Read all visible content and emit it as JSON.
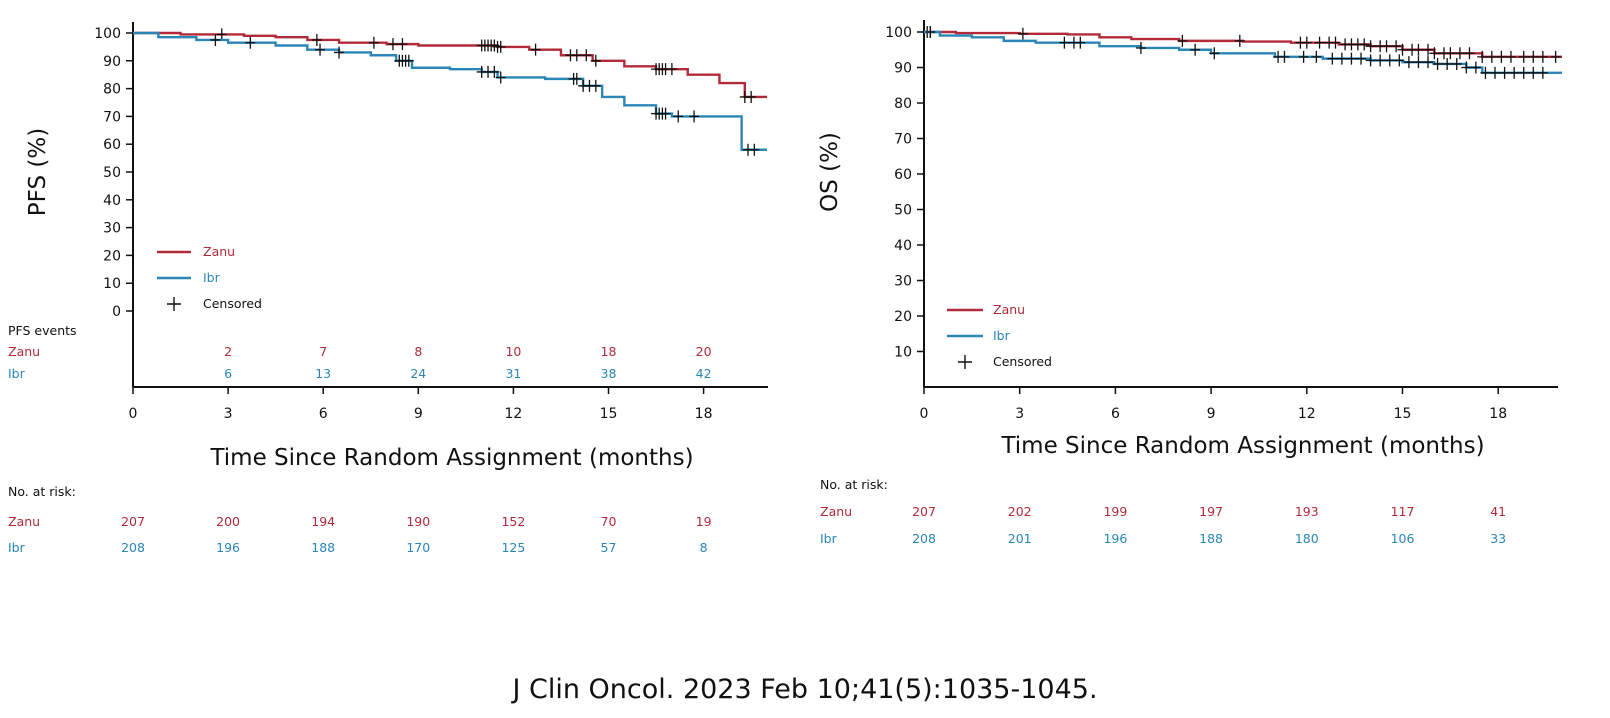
{
  "colors": {
    "zanu": "#b22a3a",
    "ibr": "#2a86b6",
    "axis": "#111111"
  },
  "citation": "J Clin Oncol. 2023 Feb 10;41(5):1035-1045.",
  "chart_data": [
    {
      "type": "line",
      "step": true,
      "ylabel": "PFS (%)",
      "xlabel": "Time Since Random Assignment (months)",
      "xlim": [
        0,
        20
      ],
      "ylim": [
        0,
        100
      ],
      "xticks": [
        0,
        3,
        6,
        9,
        12,
        15,
        18
      ],
      "yticks": [
        0,
        10,
        20,
        30,
        40,
        50,
        60,
        70,
        80,
        90,
        100
      ],
      "grid": false,
      "legend": {
        "placement": "lower-left",
        "censored_label": "Censored"
      },
      "series": [
        {
          "name": "Zanu",
          "color": "#b22a3a",
          "x": [
            0,
            1.5,
            3.5,
            4.5,
            5.5,
            6.5,
            8.0,
            9.0,
            10.0,
            11.5,
            12.5,
            13.5,
            14.5,
            15.5,
            16.5,
            17.5,
            18.5,
            19.3,
            20.0
          ],
          "y": [
            100,
            99.5,
            99,
            98.5,
            97.5,
            96.5,
            96,
            95.5,
            95.5,
            95,
            94,
            92,
            90,
            88,
            87,
            85,
            82,
            77,
            77
          ],
          "censored_x": [
            2.8,
            5.8,
            7.6,
            8.2,
            8.5,
            11.0,
            11.1,
            11.2,
            11.3,
            11.4,
            11.5,
            11.6,
            12.7,
            13.8,
            14.0,
            14.3,
            14.6,
            16.5,
            16.6,
            16.7,
            16.8,
            17.0,
            19.3,
            19.5
          ]
        },
        {
          "name": "Ibr",
          "color": "#2a86b6",
          "x": [
            0,
            0.8,
            2.0,
            3.0,
            4.5,
            5.5,
            6.5,
            7.5,
            8.3,
            8.8,
            10.0,
            11.0,
            11.5,
            13.0,
            14.2,
            14.8,
            15.5,
            16.5,
            17.0,
            19.2,
            20.0
          ],
          "y": [
            100,
            98.5,
            97.5,
            96.5,
            95.5,
            94,
            93,
            92,
            90,
            87.5,
            87,
            86,
            84,
            83.5,
            81,
            77,
            74,
            71,
            70,
            58,
            58
          ],
          "censored_x": [
            2.6,
            3.7,
            5.9,
            6.5,
            8.4,
            8.5,
            8.6,
            8.7,
            11.0,
            11.2,
            11.4,
            11.6,
            13.9,
            14.0,
            14.2,
            14.4,
            14.6,
            16.5,
            16.6,
            16.7,
            16.8,
            17.2,
            17.7,
            19.4,
            19.6
          ]
        }
      ],
      "events": {
        "label": "PFS events",
        "x": [
          3,
          6,
          9,
          12,
          15,
          18
        ],
        "zanu": [
          "2",
          "7",
          "8",
          "10",
          "18",
          "20"
        ],
        "ibr": [
          "6",
          "13",
          "24",
          "31",
          "38",
          "42"
        ]
      },
      "at_risk": {
        "label": "No. at risk:",
        "x": [
          0,
          3,
          6,
          9,
          12,
          15,
          18
        ],
        "zanu": [
          "207",
          "200",
          "194",
          "190",
          "152",
          "70",
          "19"
        ],
        "ibr": [
          "208",
          "196",
          "188",
          "170",
          "125",
          "57",
          "8"
        ]
      }
    },
    {
      "type": "line",
      "step": true,
      "ylabel": "OS (%)",
      "xlabel": "Time Since Random Assignment (months)",
      "xlim": [
        0,
        20
      ],
      "ylim": [
        0,
        100
      ],
      "xticks": [
        0,
        3,
        6,
        9,
        12,
        15,
        18
      ],
      "yticks": [
        10,
        20,
        30,
        40,
        50,
        60,
        70,
        80,
        90,
        100
      ],
      "grid": false,
      "legend": {
        "placement": "lower-left",
        "censored_label": "Censored"
      },
      "series": [
        {
          "name": "Zanu",
          "color": "#b22a3a",
          "x": [
            0,
            1.0,
            3.0,
            4.5,
            5.5,
            6.5,
            8.0,
            10.0,
            11.5,
            13.0,
            14.0,
            15.0,
            16.0,
            17.5,
            20.0
          ],
          "y": [
            100,
            99.7,
            99.5,
            99.3,
            98.5,
            98,
            97.5,
            97.3,
            97,
            96.5,
            96,
            95,
            94,
            93,
            93
          ],
          "censored_x": [
            0.1,
            0.2,
            3.1,
            8.1,
            9.9,
            11.8,
            12.0,
            12.4,
            12.7,
            12.9,
            13.2,
            13.4,
            13.6,
            13.8,
            14.0,
            14.3,
            14.5,
            14.8,
            15.0,
            15.3,
            15.5,
            15.8,
            16.0,
            16.3,
            16.5,
            16.8,
            17.1,
            17.5,
            17.8,
            18.1,
            18.4,
            18.8,
            19.1,
            19.4,
            19.8
          ]
        },
        {
          "name": "Ibr",
          "color": "#2a86b6",
          "x": [
            0,
            0.5,
            1.5,
            2.5,
            3.5,
            5.5,
            6.8,
            8.0,
            9.0,
            11.0,
            12.5,
            14.0,
            15.0,
            16.0,
            17.0,
            17.5,
            20.0
          ],
          "y": [
            100,
            99,
            98.5,
            97.5,
            97,
            96,
            95.5,
            95,
            94,
            93,
            92.5,
            92,
            91.5,
            91,
            90,
            88.5,
            88.5
          ],
          "censored_x": [
            0.2,
            4.4,
            4.7,
            4.9,
            6.8,
            8.5,
            9.1,
            11.1,
            11.3,
            11.9,
            12.3,
            12.8,
            13.1,
            13.4,
            13.7,
            14.0,
            14.3,
            14.6,
            14.9,
            15.2,
            15.5,
            15.8,
            16.1,
            16.4,
            16.7,
            17.0,
            17.3,
            17.6,
            17.9,
            18.2,
            18.5,
            18.8,
            19.1,
            19.4
          ]
        }
      ],
      "at_risk": {
        "label": "No. at risk:",
        "x": [
          0,
          3,
          6,
          9,
          12,
          15,
          18
        ],
        "zanu": [
          "207",
          "202",
          "199",
          "197",
          "193",
          "117",
          "41"
        ],
        "ibr": [
          "208",
          "201",
          "196",
          "188",
          "180",
          "106",
          "33"
        ]
      }
    }
  ]
}
